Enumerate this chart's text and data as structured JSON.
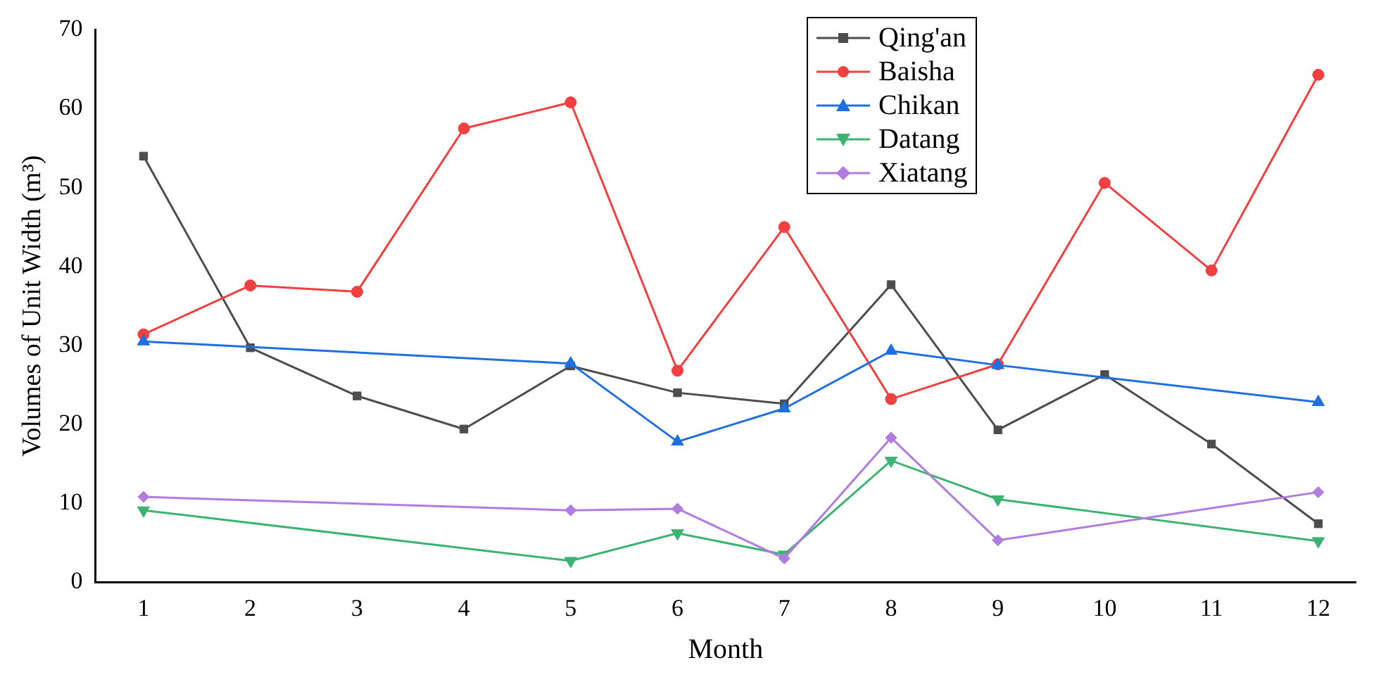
{
  "chart_data": {
    "type": "line",
    "xlabel": "Month",
    "ylabel": "Volumes of Unit Width (m³)",
    "x": [
      1,
      2,
      3,
      4,
      5,
      6,
      7,
      8,
      9,
      10,
      11,
      12
    ],
    "xlim": [
      0.55,
      12.35
    ],
    "xticks": [
      1,
      2,
      3,
      4,
      5,
      6,
      7,
      8,
      9,
      10,
      11,
      12
    ],
    "series": [
      {
        "name": "Qing'an",
        "color": "#4d4d4d",
        "marker": "square",
        "values": [
          54,
          29.7,
          23.6,
          19.4,
          27.4,
          24,
          22.6,
          37.7,
          19.3,
          26.3,
          17.5,
          7.4
        ]
      },
      {
        "name": "Baisha",
        "color": "#f04040",
        "marker": "circle",
        "values": [
          31.4,
          37.6,
          36.8,
          57.5,
          60.8,
          26.8,
          45,
          23.2,
          27.6,
          50.6,
          39.5,
          64.3
        ]
      },
      {
        "name": "Chikan",
        "color": "#1f6fe0",
        "marker": "triangle",
        "values": [
          30.5,
          null,
          null,
          null,
          27.7,
          17.8,
          22,
          29.3,
          27.5,
          null,
          null,
          22.8
        ]
      },
      {
        "name": "Datang",
        "color": "#3cb371",
        "marker": "triangle-down",
        "values": [
          9.1,
          null,
          null,
          null,
          2.7,
          6.2,
          3.5,
          15.4,
          10.5,
          null,
          null,
          5.2
        ]
      },
      {
        "name": "Xiatang",
        "color": "#b07ce0",
        "marker": "diamond",
        "values": [
          10.8,
          null,
          null,
          null,
          9.1,
          9.3,
          3,
          18.3,
          5.3,
          null,
          null,
          11.4
        ]
      }
    ],
    "ylim": [
      0,
      70
    ],
    "yticks": [
      0,
      10,
      20,
      30,
      40,
      50,
      60,
      70
    ],
    "grid": false,
    "legend": "top right",
    "line_style": "solid"
  }
}
